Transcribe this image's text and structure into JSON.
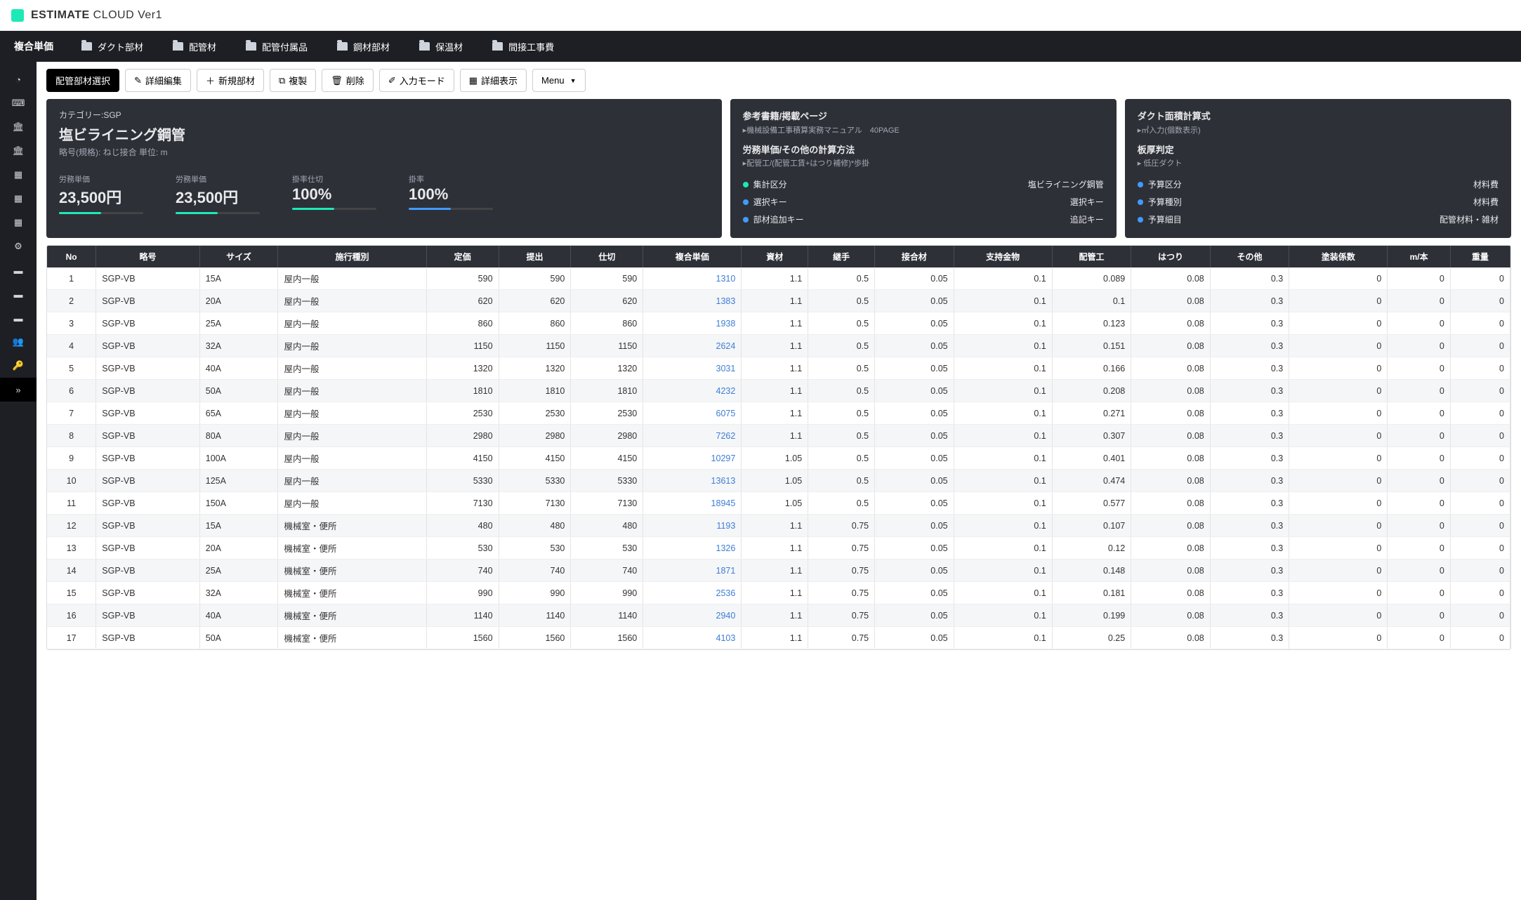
{
  "header": {
    "brand_bold": "ESTIMATE",
    "brand_light": "CLOUD Ver1"
  },
  "topnav": {
    "title": "複合単価",
    "items": [
      "ダクト部材",
      "配管材",
      "配管付属品",
      "鋼材部材",
      "保温材",
      "間接工事費"
    ]
  },
  "toolbar": {
    "select": "配管部材選択",
    "edit": "詳細編集",
    "new": "新規部材",
    "dup": "複製",
    "del": "削除",
    "input": "入力モード",
    "detail": "詳細表示",
    "menu": "Menu"
  },
  "main_card": {
    "cat_label": "カテゴリー:SGP",
    "title": "塩ビライニング鋼管",
    "subtitle": "略号(規格): ねじ接合 単位: m",
    "metrics": [
      {
        "label": "労務単価",
        "value": "23,500円",
        "bar": "teal"
      },
      {
        "label": "労務単価",
        "value": "23,500円",
        "bar": "teal"
      },
      {
        "label": "掛率仕切",
        "value": "100%",
        "bar": "teal"
      },
      {
        "label": "掛率",
        "value": "100%",
        "bar": "blue"
      }
    ]
  },
  "mid_card": {
    "ref_title": "参考書籍/掲載ページ",
    "ref_sub": "▸機械設備工事積算実務マニュアル　40PAGE",
    "calc_title": "労務単価/その他の計算方法",
    "calc_sub": "▸配管工/(配管工賃+はつり補修)*歩掛",
    "kv": [
      {
        "dot": "teal",
        "k": "集計区分",
        "v": "塩ビライニング鋼管"
      },
      {
        "dot": "blue",
        "k": "選択キー",
        "v": "選択キー"
      },
      {
        "dot": "blue",
        "k": "部材追加キー",
        "v": "追記キー"
      }
    ]
  },
  "right_card": {
    "t1": "ダクト面積計算式",
    "s1": "▸㎡入力(個数表示)",
    "t2": "板厚判定",
    "s2": "▸ 低圧ダクト",
    "kv": [
      {
        "dot": "blue",
        "k": "予算区分",
        "v": "材料費"
      },
      {
        "dot": "blue",
        "k": "予算種別",
        "v": "材料費"
      },
      {
        "dot": "blue",
        "k": "予算細目",
        "v": "配管材料・雑材"
      }
    ]
  },
  "table": {
    "columns": [
      "No",
      "略号",
      "サイズ",
      "施行種別",
      "定価",
      "提出",
      "仕切",
      "複合単価",
      "資材",
      "継手",
      "接合材",
      "支持金物",
      "配管工",
      "はつり",
      "その他",
      "塗装係数",
      "m/本",
      "重量"
    ],
    "rows": [
      [
        "1",
        "SGP-VB",
        "15A",
        "屋内一般",
        "590",
        "590",
        "590",
        "1310",
        "1.1",
        "0.5",
        "0.05",
        "0.1",
        "0.089",
        "0.08",
        "0.3",
        "0",
        "0",
        "0"
      ],
      [
        "2",
        "SGP-VB",
        "20A",
        "屋内一般",
        "620",
        "620",
        "620",
        "1383",
        "1.1",
        "0.5",
        "0.05",
        "0.1",
        "0.1",
        "0.08",
        "0.3",
        "0",
        "0",
        "0"
      ],
      [
        "3",
        "SGP-VB",
        "25A",
        "屋内一般",
        "860",
        "860",
        "860",
        "1938",
        "1.1",
        "0.5",
        "0.05",
        "0.1",
        "0.123",
        "0.08",
        "0.3",
        "0",
        "0",
        "0"
      ],
      [
        "4",
        "SGP-VB",
        "32A",
        "屋内一般",
        "1150",
        "1150",
        "1150",
        "2624",
        "1.1",
        "0.5",
        "0.05",
        "0.1",
        "0.151",
        "0.08",
        "0.3",
        "0",
        "0",
        "0"
      ],
      [
        "5",
        "SGP-VB",
        "40A",
        "屋内一般",
        "1320",
        "1320",
        "1320",
        "3031",
        "1.1",
        "0.5",
        "0.05",
        "0.1",
        "0.166",
        "0.08",
        "0.3",
        "0",
        "0",
        "0"
      ],
      [
        "6",
        "SGP-VB",
        "50A",
        "屋内一般",
        "1810",
        "1810",
        "1810",
        "4232",
        "1.1",
        "0.5",
        "0.05",
        "0.1",
        "0.208",
        "0.08",
        "0.3",
        "0",
        "0",
        "0"
      ],
      [
        "7",
        "SGP-VB",
        "65A",
        "屋内一般",
        "2530",
        "2530",
        "2530",
        "6075",
        "1.1",
        "0.5",
        "0.05",
        "0.1",
        "0.271",
        "0.08",
        "0.3",
        "0",
        "0",
        "0"
      ],
      [
        "8",
        "SGP-VB",
        "80A",
        "屋内一般",
        "2980",
        "2980",
        "2980",
        "7262",
        "1.1",
        "0.5",
        "0.05",
        "0.1",
        "0.307",
        "0.08",
        "0.3",
        "0",
        "0",
        "0"
      ],
      [
        "9",
        "SGP-VB",
        "100A",
        "屋内一般",
        "4150",
        "4150",
        "4150",
        "10297",
        "1.05",
        "0.5",
        "0.05",
        "0.1",
        "0.401",
        "0.08",
        "0.3",
        "0",
        "0",
        "0"
      ],
      [
        "10",
        "SGP-VB",
        "125A",
        "屋内一般",
        "5330",
        "5330",
        "5330",
        "13613",
        "1.05",
        "0.5",
        "0.05",
        "0.1",
        "0.474",
        "0.08",
        "0.3",
        "0",
        "0",
        "0"
      ],
      [
        "11",
        "SGP-VB",
        "150A",
        "屋内一般",
        "7130",
        "7130",
        "7130",
        "18945",
        "1.05",
        "0.5",
        "0.05",
        "0.1",
        "0.577",
        "0.08",
        "0.3",
        "0",
        "0",
        "0"
      ],
      [
        "12",
        "SGP-VB",
        "15A",
        "機械室・便所",
        "480",
        "480",
        "480",
        "1193",
        "1.1",
        "0.75",
        "0.05",
        "0.1",
        "0.107",
        "0.08",
        "0.3",
        "0",
        "0",
        "0"
      ],
      [
        "13",
        "SGP-VB",
        "20A",
        "機械室・便所",
        "530",
        "530",
        "530",
        "1326",
        "1.1",
        "0.75",
        "0.05",
        "0.1",
        "0.12",
        "0.08",
        "0.3",
        "0",
        "0",
        "0"
      ],
      [
        "14",
        "SGP-VB",
        "25A",
        "機械室・便所",
        "740",
        "740",
        "740",
        "1871",
        "1.1",
        "0.75",
        "0.05",
        "0.1",
        "0.148",
        "0.08",
        "0.3",
        "0",
        "0",
        "0"
      ],
      [
        "15",
        "SGP-VB",
        "32A",
        "機械室・便所",
        "990",
        "990",
        "990",
        "2536",
        "1.1",
        "0.75",
        "0.05",
        "0.1",
        "0.181",
        "0.08",
        "0.3",
        "0",
        "0",
        "0"
      ],
      [
        "16",
        "SGP-VB",
        "40A",
        "機械室・便所",
        "1140",
        "1140",
        "1140",
        "2940",
        "1.1",
        "0.75",
        "0.05",
        "0.1",
        "0.199",
        "0.08",
        "0.3",
        "0",
        "0",
        "0"
      ],
      [
        "17",
        "SGP-VB",
        "50A",
        "機械室・便所",
        "1560",
        "1560",
        "1560",
        "4103",
        "1.1",
        "0.75",
        "0.05",
        "0.1",
        "0.25",
        "0.08",
        "0.3",
        "0",
        "0",
        "0"
      ]
    ]
  }
}
